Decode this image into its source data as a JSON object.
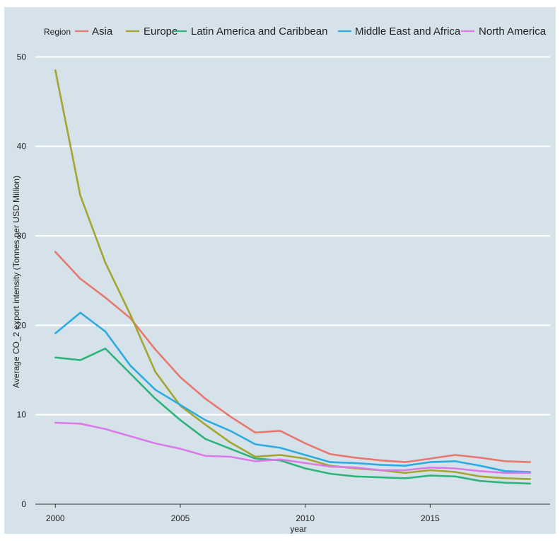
{
  "chart_data": {
    "type": "line",
    "xlabel": "year",
    "ylabel": "Average CO_2 export intensity (Tonnes per USD Million)",
    "legend_title": "Region",
    "legend_position": "top",
    "grid": true,
    "xlim": [
      1999.2,
      2019.8
    ],
    "ylim": [
      0,
      50.5
    ],
    "x_ticks": [
      2000,
      2005,
      2010,
      2015
    ],
    "y_ticks": [
      0,
      10,
      20,
      30,
      40,
      50
    ],
    "x": [
      2000,
      2001,
      2002,
      2003,
      2004,
      2005,
      2006,
      2007,
      2008,
      2009,
      2010,
      2011,
      2012,
      2013,
      2014,
      2015,
      2016,
      2017,
      2018,
      2019
    ],
    "series": [
      {
        "name": "Asia",
        "color": "#e8786f",
        "values": [
          28.2,
          25.2,
          23.1,
          20.8,
          17.3,
          14.2,
          11.8,
          9.8,
          8.0,
          8.2,
          6.8,
          5.6,
          5.2,
          4.9,
          4.7,
          5.1,
          5.5,
          5.2,
          4.8,
          4.7
        ]
      },
      {
        "name": "Europe",
        "color": "#a3a530",
        "values": [
          48.5,
          34.5,
          27.0,
          21.2,
          14.8,
          11.0,
          8.9,
          6.9,
          5.3,
          5.5,
          5.1,
          4.3,
          4.0,
          3.8,
          3.5,
          3.8,
          3.6,
          3.1,
          2.9,
          2.8
        ]
      },
      {
        "name": "Latin America and Caribbean",
        "color": "#2fb37d",
        "values": [
          16.4,
          16.1,
          17.4,
          14.6,
          11.8,
          9.4,
          7.3,
          6.2,
          5.1,
          4.9,
          4.0,
          3.4,
          3.1,
          3.0,
          2.9,
          3.2,
          3.1,
          2.6,
          2.4,
          2.3
        ]
      },
      {
        "name": "Middle East and Africa",
        "color": "#2aace3",
        "values": [
          19.1,
          21.4,
          19.3,
          15.5,
          12.8,
          11.1,
          9.4,
          8.2,
          6.7,
          6.3,
          5.5,
          4.7,
          4.6,
          4.4,
          4.3,
          4.7,
          4.8,
          4.3,
          3.7,
          3.6
        ]
      },
      {
        "name": "North America",
        "color": "#dc78e8",
        "values": [
          9.1,
          9.0,
          8.4,
          7.6,
          6.8,
          6.2,
          5.4,
          5.3,
          4.8,
          5.0,
          4.6,
          4.2,
          4.1,
          3.8,
          3.8,
          4.1,
          4.0,
          3.7,
          3.5,
          3.5
        ]
      }
    ]
  }
}
